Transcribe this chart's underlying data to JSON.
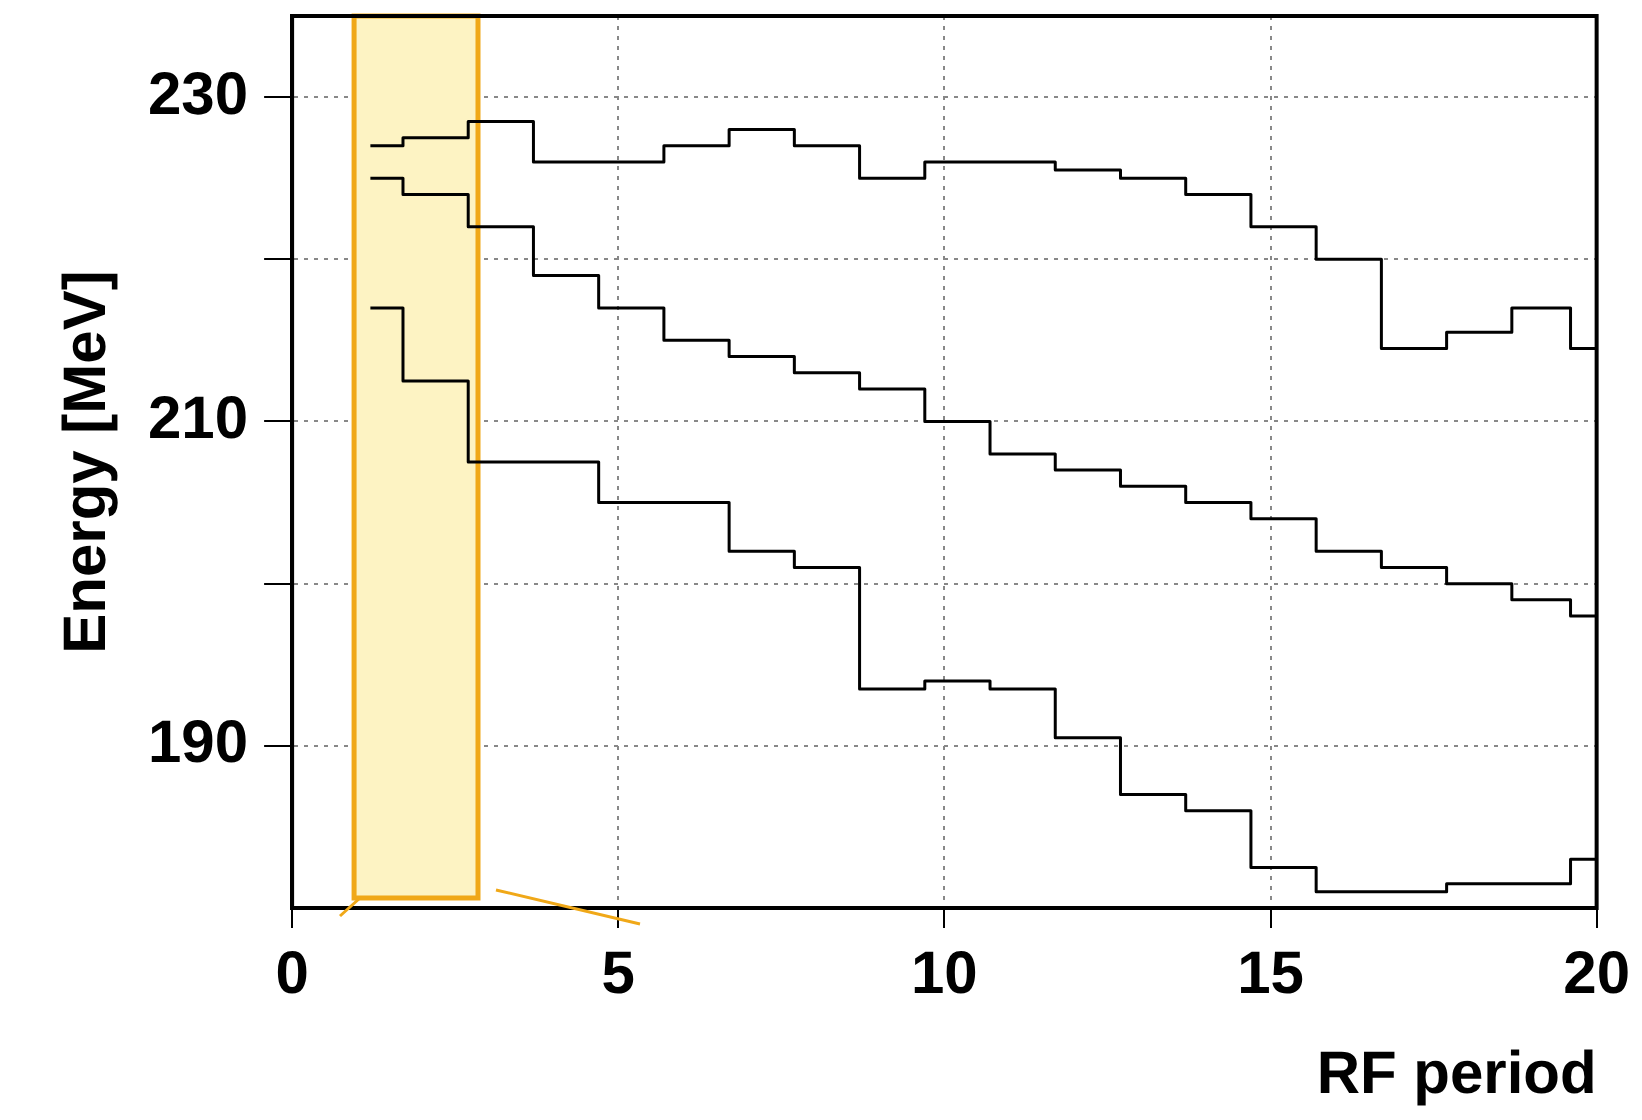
{
  "chart_data": {
    "type": "step",
    "xlabel": "RF period",
    "ylabel": "Energy [MeV]",
    "x": [
      1.2,
      2.2,
      3.2,
      4.2,
      5.2,
      6.2,
      7.2,
      8.2,
      9.2,
      10.2,
      11.2,
      12.2,
      13.2,
      14.2,
      15.2,
      16.2,
      17.2,
      18.2,
      19.2,
      20.0
    ],
    "series": [
      {
        "color": "#000000",
        "values": [
          227,
          227.5,
          228.5,
          226,
          226,
          227,
          228,
          227,
          225,
          226,
          226,
          225.5,
          225,
          224,
          222,
          220,
          214.5,
          215.5,
          217,
          214.5
        ]
      },
      {
        "color": "#000000",
        "values": [
          225,
          224,
          222,
          219,
          217,
          215,
          214,
          213,
          212,
          210,
          208,
          207,
          206,
          205,
          204,
          202,
          201,
          200,
          199,
          198
        ]
      },
      {
        "color": "#000000",
        "values": [
          217,
          212.5,
          207.5,
          207.5,
          205,
          205,
          202,
          201,
          193.5,
          194,
          193.5,
          190.5,
          187,
          186,
          182.5,
          181,
          181,
          181.5,
          181.5,
          183
        ]
      }
    ],
    "xlim": [
      0,
      20
    ],
    "xticks": [
      0,
      5,
      10,
      15,
      20
    ],
    "ylim": [
      180,
      235
    ],
    "yticks": [
      {
        "value": 190,
        "label": "190"
      },
      {
        "value": 200,
        "label": null
      },
      {
        "value": 210,
        "label": "210"
      },
      {
        "value": 220,
        "label": null
      },
      {
        "value": 230,
        "label": "230"
      }
    ],
    "grid": true,
    "legend": false,
    "marker": "none",
    "bands": [
      {
        "axis": "x",
        "from": 0.95,
        "to": 2.85,
        "color": "#fdf3c3"
      }
    ]
  }
}
